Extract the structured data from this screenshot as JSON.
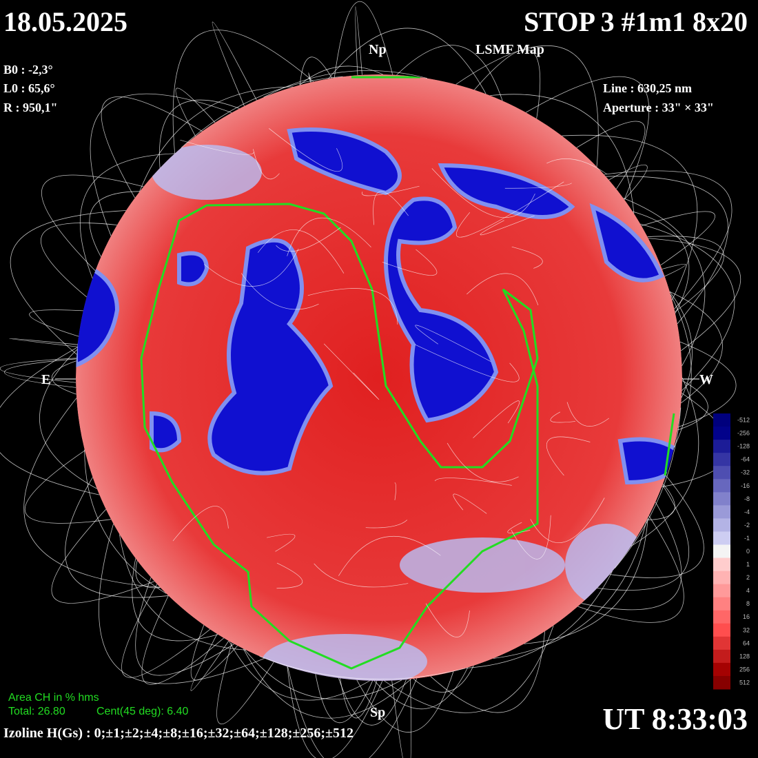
{
  "header": {
    "date": "18.05.2025",
    "title": "STOP 3 #1m1 8x20",
    "subtitle": "LSMF  Map"
  },
  "parameters": {
    "b0": "B0 : -2,3°",
    "l0": "L0 : 65,6°",
    "r": "R  : 950,1\"",
    "line": "Line :  630,25 nm",
    "aperture": "Aperture : 33\" × 33\""
  },
  "orientation": {
    "north": "Np",
    "south": "Sp",
    "east": "E",
    "west": "W"
  },
  "coronal_hole": {
    "title": "Area CH in % hms",
    "total": "Total: 26.80",
    "center": "Cent(45 deg): 6.40"
  },
  "isolines": "Izoline H(Gs) : 0;±1;±2;±4;±8;±16;±32;±64;±128;±256;±512",
  "time": "UT 8:33:03",
  "colorbar": {
    "labels": [
      "-512",
      "-256",
      "-128",
      "-64",
      "-32",
      "-16",
      "-8",
      "-4",
      "-2",
      "-1",
      "0",
      "1",
      "2",
      "4",
      "8",
      "16",
      "32",
      "64",
      "128",
      "256",
      "512"
    ]
  }
}
